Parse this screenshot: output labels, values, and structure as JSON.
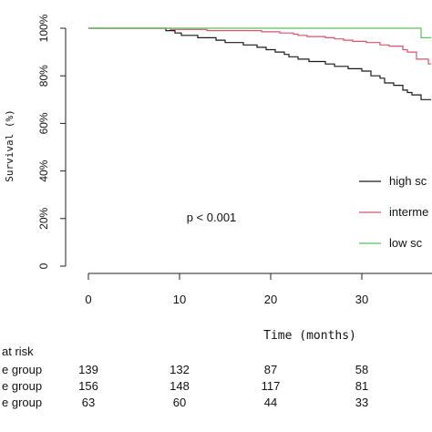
{
  "chart_data": {
    "type": "line",
    "title": "",
    "xlabel": "Time  (months)",
    "ylabel": "Survival (%)",
    "xlim": [
      0,
      37.6
    ],
    "ylim": [
      0,
      1
    ],
    "x_ticks": [
      "0",
      "10",
      "20",
      "30"
    ],
    "y_ticks": [
      "0",
      "20%",
      "40%",
      "60%",
      "80%",
      "100%"
    ],
    "grid": false,
    "legend_position": "right",
    "annotation": "p < 0.001",
    "series": [
      {
        "name": "high sc",
        "color": "#1a1a1a",
        "points": [
          [
            0,
            1.0
          ],
          [
            7.8,
            1.0
          ],
          [
            8.5,
            0.99
          ],
          [
            9.5,
            0.98
          ],
          [
            10.2,
            0.97
          ],
          [
            12,
            0.96
          ],
          [
            14,
            0.95
          ],
          [
            15,
            0.94
          ],
          [
            17,
            0.93
          ],
          [
            18.5,
            0.92
          ],
          [
            19.5,
            0.91
          ],
          [
            20.5,
            0.9
          ],
          [
            21.5,
            0.89
          ],
          [
            22,
            0.88
          ],
          [
            23,
            0.87
          ],
          [
            24.2,
            0.86
          ],
          [
            26,
            0.85
          ],
          [
            27,
            0.84
          ],
          [
            28.5,
            0.83
          ],
          [
            30,
            0.82
          ],
          [
            31,
            0.8
          ],
          [
            32,
            0.79
          ],
          [
            32.5,
            0.77
          ],
          [
            33.5,
            0.76
          ],
          [
            34.5,
            0.74
          ],
          [
            35,
            0.73
          ],
          [
            35.5,
            0.72
          ],
          [
            36.5,
            0.7
          ],
          [
            37.6,
            0.7
          ]
        ]
      },
      {
        "name": "interme",
        "color": "#d9536b",
        "points": [
          [
            0,
            1.0
          ],
          [
            8,
            1.0
          ],
          [
            9,
            0.995
          ],
          [
            13,
            0.99
          ],
          [
            17,
            0.99
          ],
          [
            19,
            0.985
          ],
          [
            21,
            0.98
          ],
          [
            22.5,
            0.975
          ],
          [
            23,
            0.97
          ],
          [
            24,
            0.965
          ],
          [
            26,
            0.96
          ],
          [
            27,
            0.955
          ],
          [
            28,
            0.95
          ],
          [
            29,
            0.945
          ],
          [
            30.5,
            0.94
          ],
          [
            32,
            0.93
          ],
          [
            33,
            0.925
          ],
          [
            34.5,
            0.91
          ],
          [
            35,
            0.9
          ],
          [
            36,
            0.87
          ],
          [
            37.3,
            0.85
          ],
          [
            37.6,
            0.85
          ]
        ]
      },
      {
        "name": "low sc",
        "color": "#5cc05c",
        "points": [
          [
            0,
            1.0
          ],
          [
            36,
            1.0
          ],
          [
            36.5,
            0.96
          ],
          [
            37.6,
            0.96
          ]
        ]
      }
    ],
    "risk_table": {
      "title": "at risk",
      "rows": [
        {
          "label": "e group",
          "values": [
            "139",
            "132",
            "87",
            "58"
          ]
        },
        {
          "label": "e group",
          "values": [
            "156",
            "148",
            "117",
            "81"
          ]
        },
        {
          "label": "e group",
          "values": [
            "63",
            "60",
            "44",
            "33"
          ]
        }
      ]
    }
  }
}
